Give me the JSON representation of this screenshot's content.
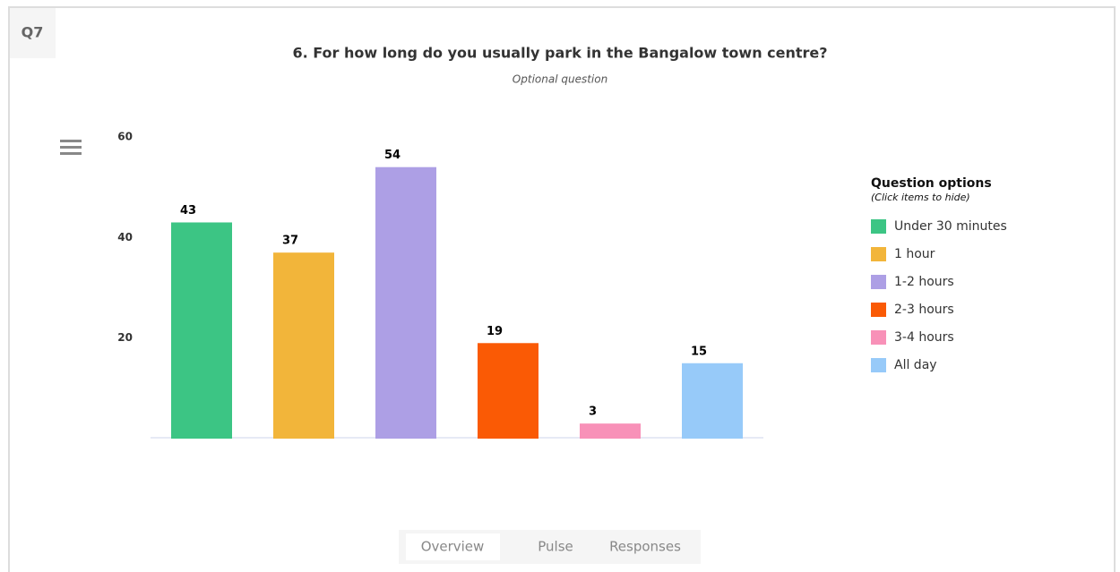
{
  "badge": "Q7",
  "chart_data": {
    "type": "bar",
    "title": "6. For how long do you usually park in the Bangalow town centre?",
    "subtitle": "Optional question",
    "categories": [
      "Under 30 minutes",
      "1 hour",
      "1-2 hours",
      "2-3 hours",
      "3-4 hours",
      "All day"
    ],
    "values": [
      43,
      37,
      54,
      19,
      3,
      15
    ],
    "colors": [
      "#3cc584",
      "#f2b53a",
      "#ad9fe5",
      "#fa5a05",
      "#f891b8",
      "#97caf9"
    ],
    "ylim": [
      0,
      60
    ],
    "yticks": [
      20,
      40,
      60
    ],
    "grid": false,
    "legend_title": "Question options",
    "legend_subtitle": "(Click items to hide)",
    "legend_position": "right"
  },
  "tabs": [
    "Overview",
    "Pulse",
    "Responses"
  ]
}
